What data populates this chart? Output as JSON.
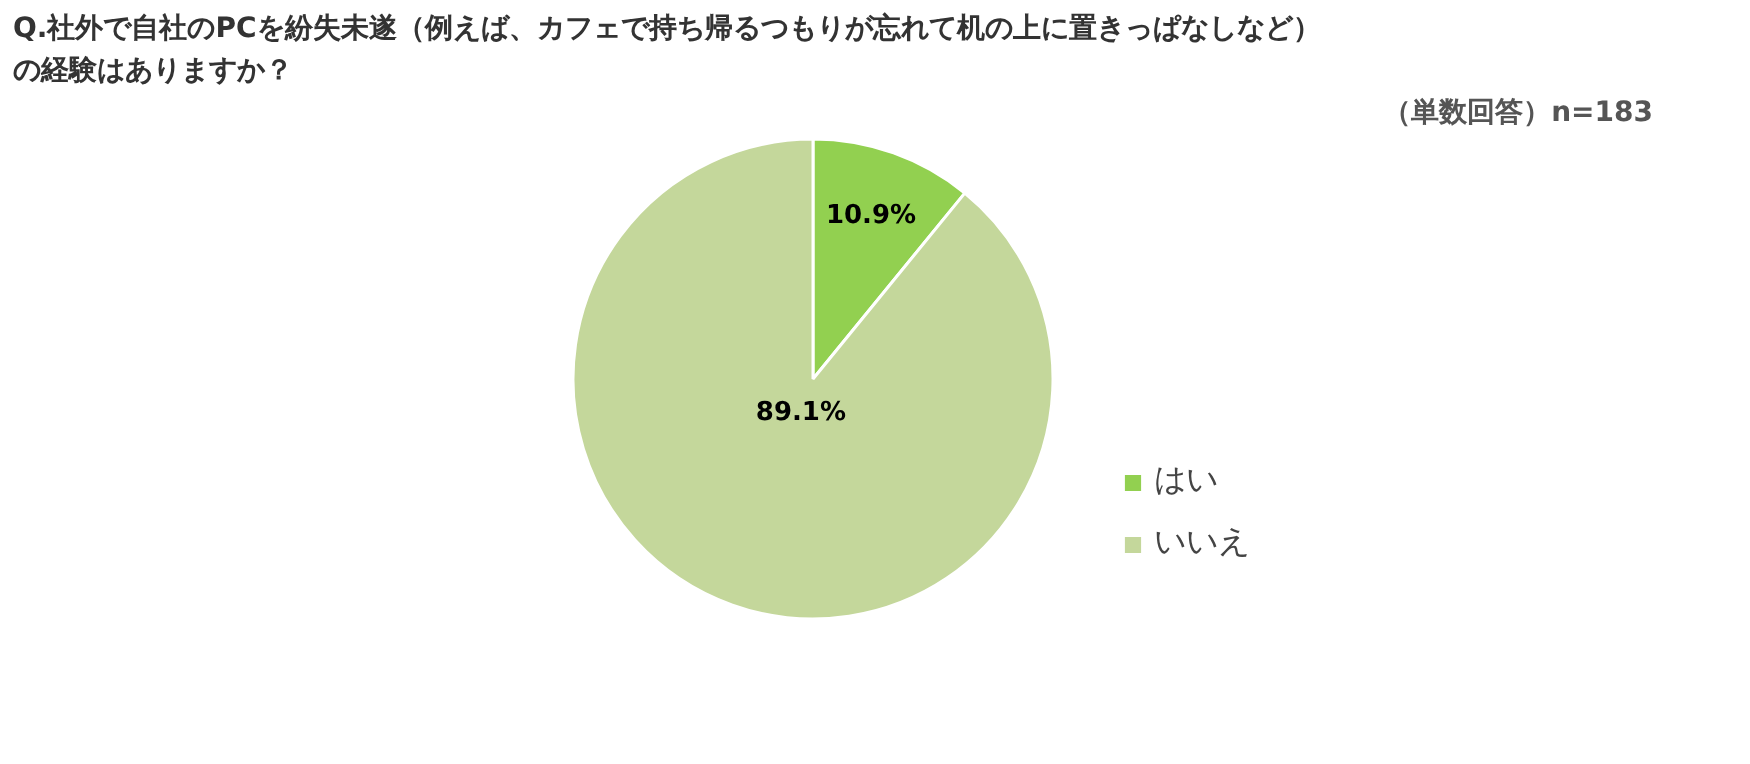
{
  "chart_data": {
    "type": "pie",
    "title": "Q.社外で自社のPCを紛失未遂（例えば、カフェで持ち帰るつもりが忘れて机の上に置きっぱなしなど）の経験はありますか？",
    "subtitle": "（単数回答）n=183",
    "categories": [
      "はい",
      "いいえ"
    ],
    "values": [
      10.9,
      89.1
    ],
    "colors": [
      "#92d050",
      "#c4d79b"
    ],
    "value_labels": [
      "10.9%",
      "89.1%"
    ],
    "legend": "right"
  }
}
